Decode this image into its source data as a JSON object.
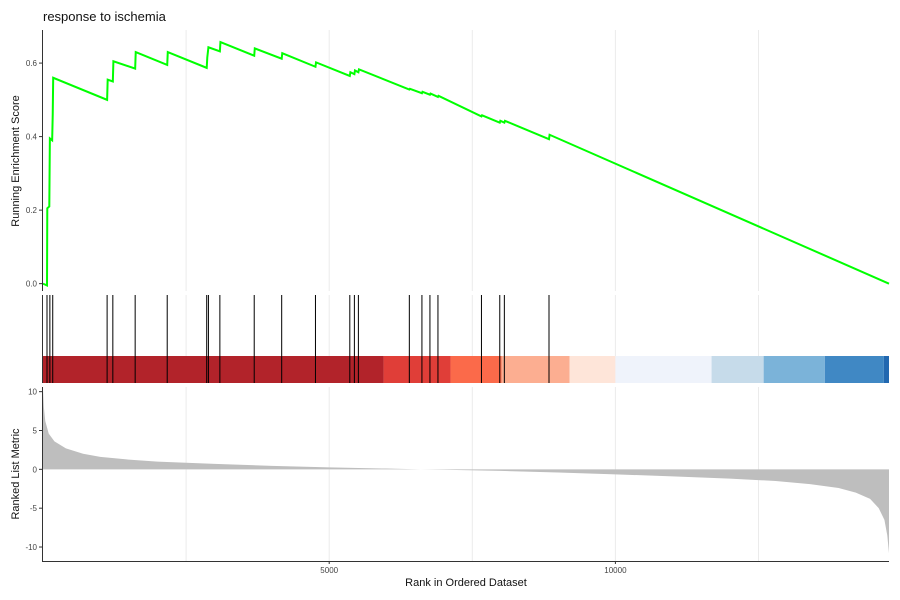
{
  "chart_data": {
    "type": "line",
    "title": "response to ischemia",
    "x_axis": {
      "label": "Rank in Ordered Dataset",
      "range": [
        0,
        14780
      ],
      "ticks": [
        5000,
        10000
      ],
      "tick_labels": [
        "5000",
        "10000"
      ]
    },
    "es_panel": {
      "ylabel": "Running Enrichment Score",
      "ylim": [
        -0.02,
        0.69
      ],
      "yticks": [
        0.0,
        0.2,
        0.4,
        0.6
      ],
      "ytick_labels": [
        "0.0",
        "0.2",
        "0.4",
        "0.6"
      ],
      "line_color": "#00ff00",
      "running_score": [
        {
          "x": 0,
          "y": 0.0
        },
        {
          "x": 70,
          "y": -0.005
        },
        {
          "x": 75,
          "y": 0.205
        },
        {
          "x": 110,
          "y": 0.21
        },
        {
          "x": 120,
          "y": 0.395
        },
        {
          "x": 160,
          "y": 0.39
        },
        {
          "x": 170,
          "y": 0.46
        },
        {
          "x": 178,
          "y": 0.56
        },
        {
          "x": 1120,
          "y": 0.5
        },
        {
          "x": 1130,
          "y": 0.555
        },
        {
          "x": 1220,
          "y": 0.55
        },
        {
          "x": 1230,
          "y": 0.605
        },
        {
          "x": 1610,
          "y": 0.585
        },
        {
          "x": 1620,
          "y": 0.63
        },
        {
          "x": 2170,
          "y": 0.595
        },
        {
          "x": 2180,
          "y": 0.63
        },
        {
          "x": 2860,
          "y": 0.587
        },
        {
          "x": 2870,
          "y": 0.615
        },
        {
          "x": 2890,
          "y": 0.643
        },
        {
          "x": 3090,
          "y": 0.632
        },
        {
          "x": 3100,
          "y": 0.657
        },
        {
          "x": 3690,
          "y": 0.62
        },
        {
          "x": 3700,
          "y": 0.64
        },
        {
          "x": 4170,
          "y": 0.612
        },
        {
          "x": 4180,
          "y": 0.627
        },
        {
          "x": 4760,
          "y": 0.59
        },
        {
          "x": 4770,
          "y": 0.602
        },
        {
          "x": 5360,
          "y": 0.565
        },
        {
          "x": 5370,
          "y": 0.575
        },
        {
          "x": 5440,
          "y": 0.57
        },
        {
          "x": 5450,
          "y": 0.58
        },
        {
          "x": 5510,
          "y": 0.575
        },
        {
          "x": 5520,
          "y": 0.583
        },
        {
          "x": 6400,
          "y": 0.528
        },
        {
          "x": 6410,
          "y": 0.53
        },
        {
          "x": 6620,
          "y": 0.518
        },
        {
          "x": 6630,
          "y": 0.522
        },
        {
          "x": 6760,
          "y": 0.514
        },
        {
          "x": 6770,
          "y": 0.517
        },
        {
          "x": 6900,
          "y": 0.508
        },
        {
          "x": 6910,
          "y": 0.511
        },
        {
          "x": 7660,
          "y": 0.455
        },
        {
          "x": 7670,
          "y": 0.458
        },
        {
          "x": 7980,
          "y": 0.438
        },
        {
          "x": 7990,
          "y": 0.443
        },
        {
          "x": 8060,
          "y": 0.438
        },
        {
          "x": 8070,
          "y": 0.443
        },
        {
          "x": 8840,
          "y": 0.393
        },
        {
          "x": 8850,
          "y": 0.405
        },
        {
          "x": 14780,
          "y": 0.0
        }
      ],
      "gene_hits": [
        70,
        120,
        170,
        1120,
        1220,
        1610,
        2170,
        2860,
        2890,
        3090,
        3690,
        4170,
        4760,
        5360,
        5440,
        5510,
        6400,
        6620,
        6760,
        6900,
        7660,
        7980,
        8060,
        8840
      ]
    },
    "color_bar": [
      {
        "from": 0,
        "to": 5950,
        "color": "#b2232a"
      },
      {
        "from": 5950,
        "to": 7120,
        "color": "#e03e38"
      },
      {
        "from": 7120,
        "to": 8010,
        "color": "#fb6a4a"
      },
      {
        "from": 8010,
        "to": 9200,
        "color": "#fcae91"
      },
      {
        "from": 9200,
        "to": 10000,
        "color": "#fee5d9"
      },
      {
        "from": 10000,
        "to": 11680,
        "color": "#eff3fb"
      },
      {
        "from": 11680,
        "to": 12590,
        "color": "#c6dbea"
      },
      {
        "from": 12590,
        "to": 13660,
        "color": "#7bb3d9"
      },
      {
        "from": 13660,
        "to": 14690,
        "color": "#4088c4"
      },
      {
        "from": 14690,
        "to": 14780,
        "color": "#2268b0"
      }
    ],
    "metric_panel": {
      "ylabel": "Ranked List Metric",
      "ylim": [
        -11.8,
        10.6
      ],
      "yticks": [
        -10,
        -5,
        0,
        5,
        10
      ],
      "ytick_labels": [
        "-10",
        "-5",
        "0",
        "5",
        "10"
      ],
      "fill_color": "#bebebe",
      "metric_curve": [
        {
          "x": 0,
          "y": 10.3
        },
        {
          "x": 15,
          "y": 8.0
        },
        {
          "x": 40,
          "y": 6.2
        },
        {
          "x": 100,
          "y": 4.6
        },
        {
          "x": 200,
          "y": 3.6
        },
        {
          "x": 400,
          "y": 2.7
        },
        {
          "x": 700,
          "y": 2.0
        },
        {
          "x": 1000,
          "y": 1.6
        },
        {
          "x": 1500,
          "y": 1.25
        },
        {
          "x": 2000,
          "y": 1.0
        },
        {
          "x": 3000,
          "y": 0.7
        },
        {
          "x": 4000,
          "y": 0.45
        },
        {
          "x": 5000,
          "y": 0.25
        },
        {
          "x": 6000,
          "y": 0.1
        },
        {
          "x": 6600,
          "y": 0.0
        },
        {
          "x": 7000,
          "y": -0.05
        },
        {
          "x": 8000,
          "y": -0.2
        },
        {
          "x": 9000,
          "y": -0.4
        },
        {
          "x": 10000,
          "y": -0.65
        },
        {
          "x": 11000,
          "y": -0.9
        },
        {
          "x": 12000,
          "y": -1.2
        },
        {
          "x": 12800,
          "y": -1.5
        },
        {
          "x": 13400,
          "y": -1.9
        },
        {
          "x": 13900,
          "y": -2.4
        },
        {
          "x": 14200,
          "y": -3.0
        },
        {
          "x": 14450,
          "y": -3.8
        },
        {
          "x": 14600,
          "y": -5.0
        },
        {
          "x": 14700,
          "y": -6.5
        },
        {
          "x": 14750,
          "y": -8.5
        },
        {
          "x": 14780,
          "y": -10.8
        }
      ]
    }
  }
}
